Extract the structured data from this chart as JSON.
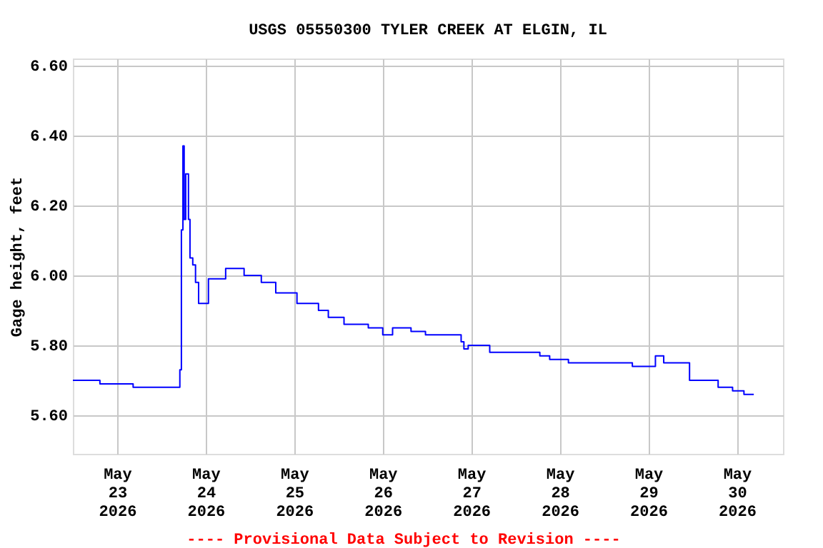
{
  "chart_data": {
    "type": "step",
    "title": "USGS 05550300 TYLER CREEK AT ELGIN, IL",
    "ylabel": "Gage height, feet",
    "annotations": [
      "---- Provisional Data Subject to Revision ----"
    ],
    "x": [
      "2026-05-22T12:00",
      "2026-05-22T19:20",
      "2026-05-23T04:20",
      "2026-05-23T16:40",
      "2026-05-23T17:00",
      "2026-05-23T17:25",
      "2026-05-23T17:50",
      "2026-05-23T18:10",
      "2026-05-23T18:35",
      "2026-05-23T19:20",
      "2026-05-23T19:45",
      "2026-05-23T20:30",
      "2026-05-23T21:15",
      "2026-05-23T22:05",
      "2026-05-23T23:35",
      "2026-05-24T00:45",
      "2026-05-24T05:25",
      "2026-05-24T10:25",
      "2026-05-24T15:05",
      "2026-05-24T19:00",
      "2026-05-25T00:45",
      "2026-05-25T06:35",
      "2026-05-25T09:15",
      "2026-05-25T13:30",
      "2026-05-25T20:05",
      "2026-05-26T00:00",
      "2026-05-26T02:40",
      "2026-05-26T07:40",
      "2026-05-26T11:35",
      "2026-05-26T19:20",
      "2026-05-26T21:15",
      "2026-05-26T22:00",
      "2026-05-26T23:10",
      "2026-05-27T03:50",
      "2026-05-27T05:00",
      "2026-05-27T18:10",
      "2026-05-27T18:35",
      "2026-05-27T20:30",
      "2026-05-27T21:15",
      "2026-05-28T01:55",
      "2026-05-28T02:20",
      "2026-05-28T17:45",
      "2026-05-28T19:40",
      "2026-05-29T00:20",
      "2026-05-29T01:55",
      "2026-05-29T04:10",
      "2026-05-29T08:30",
      "2026-05-29T11:10",
      "2026-05-29T18:55",
      "2026-05-29T22:50",
      "2026-05-30T01:55",
      "2026-05-30T04:35"
    ],
    "series": [
      {
        "color": "#0000ff",
        "values": [
          5.7,
          5.69,
          5.68,
          5.68,
          5.73,
          6.13,
          6.37,
          6.16,
          6.29,
          6.16,
          6.05,
          6.03,
          5.98,
          5.92,
          5.92,
          5.99,
          6.02,
          6.0,
          5.98,
          5.95,
          5.92,
          5.9,
          5.88,
          5.86,
          5.85,
          5.83,
          5.85,
          5.84,
          5.83,
          5.83,
          5.81,
          5.79,
          5.8,
          5.8,
          5.78,
          5.78,
          5.77,
          5.77,
          5.76,
          5.76,
          5.75,
          5.75,
          5.74,
          5.74,
          5.77,
          5.75,
          5.75,
          5.7,
          5.68,
          5.67,
          5.66,
          5.66
        ]
      }
    ],
    "xlim": [
      "2026-05-22T12:00",
      "2026-05-30T12:30"
    ],
    "xticks": [
      {
        "value": "2026-05-23",
        "label": "May\n23\n2026"
      },
      {
        "value": "2026-05-24",
        "label": "May\n24\n2026"
      },
      {
        "value": "2026-05-25",
        "label": "May\n25\n2026"
      },
      {
        "value": "2026-05-26",
        "label": "May\n26\n2026"
      },
      {
        "value": "2026-05-27",
        "label": "May\n27\n2026"
      },
      {
        "value": "2026-05-28",
        "label": "May\n28\n2026"
      },
      {
        "value": "2026-05-29",
        "label": "May\n29\n2026"
      },
      {
        "value": "2026-05-30",
        "label": "May\n30\n2026"
      }
    ],
    "ylim": [
      5.49,
      6.62
    ],
    "yticks": [
      {
        "value": 5.6,
        "label": "5.60"
      },
      {
        "value": 5.8,
        "label": "5.80"
      },
      {
        "value": 6.0,
        "label": "6.00"
      },
      {
        "value": 6.2,
        "label": "6.20"
      },
      {
        "value": 6.4,
        "label": "6.40"
      },
      {
        "value": 6.6,
        "label": "6.60"
      }
    ],
    "grid": true,
    "marker": "none",
    "line_style": "solid"
  }
}
